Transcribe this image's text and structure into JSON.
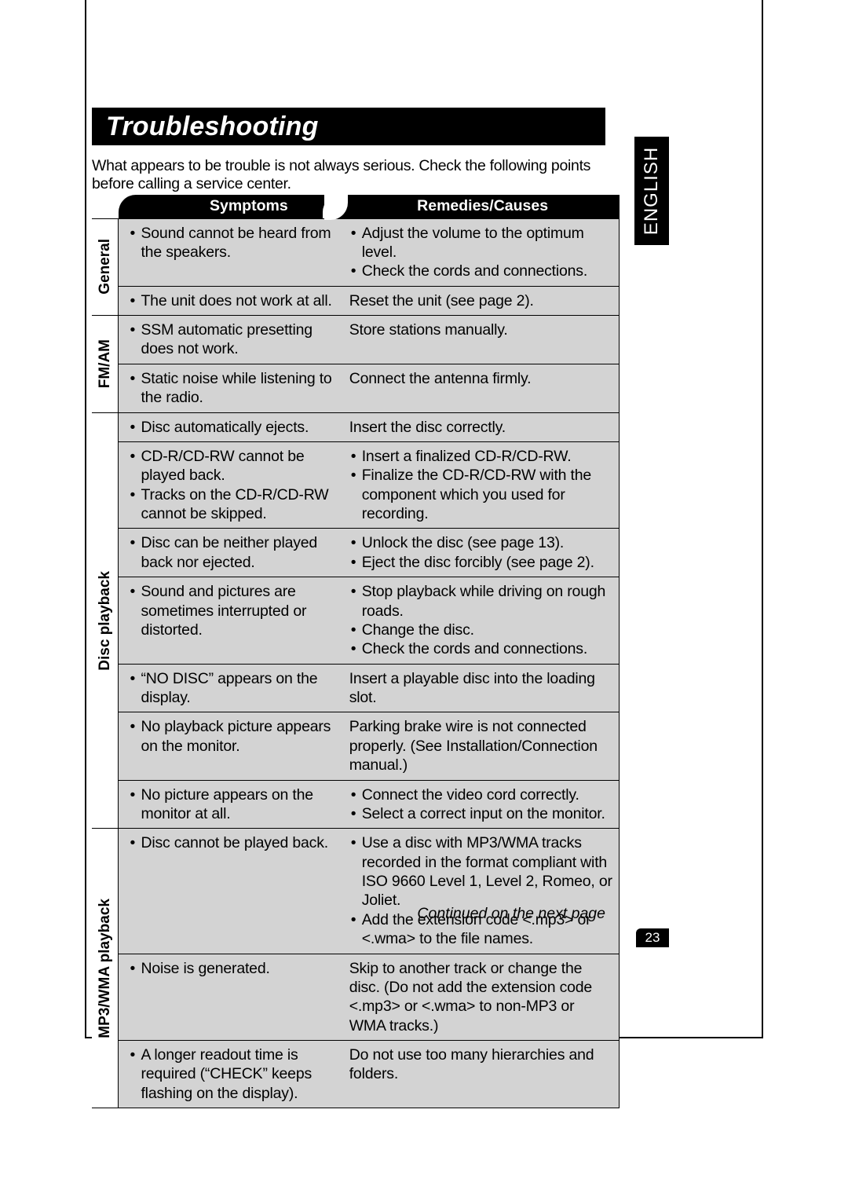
{
  "title": "Troubleshooting",
  "language_tab": "ENGLISH",
  "intro": "What appears to be trouble is not always serious. Check the following points before calling a service center.",
  "headers": {
    "symptoms": "Symptoms",
    "remedies": "Remedies/Causes"
  },
  "categories": [
    {
      "label": "General",
      "rows": [
        {
          "symptoms": [
            "Sound cannot be heard from the speakers."
          ],
          "remedies": [
            "Adjust the volume to the optimum level.",
            "Check the cords and connections."
          ],
          "remedies_type": "bullets"
        },
        {
          "symptoms": [
            "The unit does not work at all."
          ],
          "remedies_plain": "Reset the unit (see page 2)."
        }
      ]
    },
    {
      "label": "FM/AM",
      "rows": [
        {
          "symptoms": [
            "SSM automatic presetting does not work."
          ],
          "remedies_plain": "Store stations manually."
        },
        {
          "symptoms": [
            "Static noise while listening to the radio."
          ],
          "remedies_plain": "Connect the antenna firmly."
        }
      ]
    },
    {
      "label": "Disc playback",
      "rows": [
        {
          "symptoms": [
            "Disc automatically ejects."
          ],
          "remedies_plain": "Insert the disc correctly."
        },
        {
          "symptoms": [
            "CD-R/CD-RW cannot be played back.",
            "Tracks on the CD-R/CD-RW cannot be skipped."
          ],
          "remedies": [
            "Insert a finalized CD-R/CD-RW.",
            "Finalize the CD-R/CD-RW with the component which you used for recording."
          ],
          "remedies_type": "bullets"
        },
        {
          "symptoms": [
            "Disc can be neither played back nor ejected."
          ],
          "remedies": [
            "Unlock the disc (see page 13).",
            "Eject the disc forcibly (see page 2)."
          ],
          "remedies_type": "bullets"
        },
        {
          "symptoms": [
            "Sound and pictures are sometimes interrupted or distorted."
          ],
          "remedies": [
            "Stop playback while driving on rough roads.",
            "Change the disc.",
            "Check the cords and connections."
          ],
          "remedies_type": "bullets"
        },
        {
          "symptoms": [
            "“NO DISC” appears on the display."
          ],
          "remedies_plain": "Insert a playable disc into the loading slot."
        },
        {
          "symptoms": [
            "No playback picture appears on the monitor."
          ],
          "remedies_plain": "Parking brake wire is not connected properly. (See Installation/Connection manual.)"
        },
        {
          "symptoms": [
            "No picture appears on the monitor at all."
          ],
          "remedies": [
            "Connect the video cord correctly.",
            "Select a correct input on the monitor."
          ],
          "remedies_type": "bullets"
        }
      ]
    },
    {
      "label": "MP3/WMA playback",
      "rows": [
        {
          "symptoms": [
            "Disc cannot be played back."
          ],
          "remedies": [
            "Use a disc with MP3/WMA tracks recorded in the format compliant with ISO 9660 Level 1, Level 2, Romeo, or Joliet.",
            "Add the extension code <.mp3> or <.wma> to the file names."
          ],
          "remedies_type": "bullets"
        },
        {
          "symptoms": [
            "Noise is generated."
          ],
          "remedies_plain": "Skip to another track or change the disc. (Do not add the extension code <.mp3> or <.wma> to non-MP3 or WMA tracks.)"
        },
        {
          "symptoms": [
            "A longer readout time is required (“CHECK” keeps flashing on the display)."
          ],
          "remedies_plain": "Do not use too many hierarchies and folders."
        }
      ]
    }
  ],
  "continued": "Continued on the next page",
  "page_number": "23",
  "colors": {
    "black": "#000000",
    "white": "#ffffff",
    "row_bg": "#d3d3d3",
    "inner_border": "#888888"
  }
}
